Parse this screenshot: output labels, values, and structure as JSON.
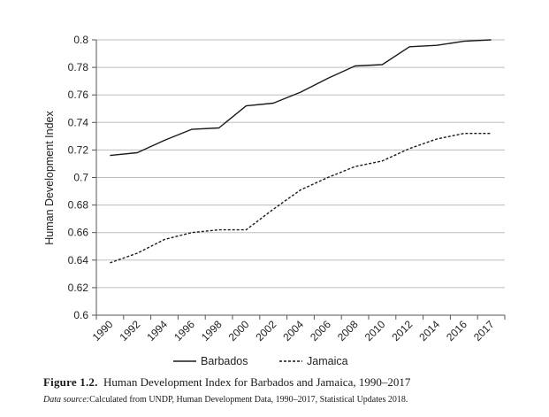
{
  "chart_data": {
    "type": "line",
    "title": "",
    "xlabel": "",
    "ylabel": "Human Development Index",
    "x": [
      "1990",
      "1992",
      "1994",
      "1996",
      "1998",
      "2000",
      "2002",
      "2004",
      "2006",
      "2008",
      "2010",
      "2012",
      "2014",
      "2016",
      "2017"
    ],
    "ylim": [
      0.6,
      0.8
    ],
    "yticks": [
      "0.6",
      "0.62",
      "0.64",
      "0.66",
      "0.68",
      "0.7",
      "0.72",
      "0.74",
      "0.76",
      "0.78",
      "0.8"
    ],
    "grid": "horizontal",
    "legend_position": "bottom",
    "series": [
      {
        "name": "Barbados",
        "line_style": "solid",
        "values": [
          0.716,
          0.718,
          0.727,
          0.735,
          0.736,
          0.752,
          0.754,
          0.762,
          0.772,
          0.781,
          0.782,
          0.795,
          0.796,
          0.799,
          0.8
        ]
      },
      {
        "name": "Jamaica",
        "line_style": "dashed",
        "values": [
          0.638,
          0.645,
          0.655,
          0.66,
          0.662,
          0.662,
          0.677,
          0.691,
          0.7,
          0.708,
          0.712,
          0.721,
          0.728,
          0.732,
          0.732
        ]
      }
    ]
  },
  "caption": {
    "label": "Figure 1.2.",
    "text": "Human Development Index for Barbados and Jamaica, 1990–2017"
  },
  "source": {
    "label": "Data source:",
    "text": "Calculated from UNDP, Human Development Data, 1990–2017, Statistical Updates 2018."
  },
  "colors": {
    "line": "#1a1a1a",
    "grid": "#bdbdbd",
    "axis": "#555555"
  }
}
